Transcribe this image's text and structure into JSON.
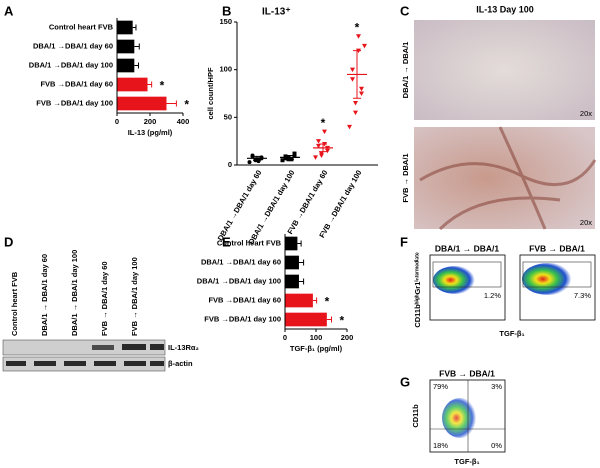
{
  "chart_data": [
    {
      "type": "hbar",
      "panel_label": "A",
      "categories": [
        "Control heart FVB",
        "DBA/1 →DBA/1 day 60",
        "DBA/1 →DBA/1 day 100",
        "FVB →DBA/1 day 60",
        "FVB →DBA/1 day 100"
      ],
      "values": [
        95,
        105,
        105,
        185,
        300
      ],
      "errors": [
        20,
        30,
        25,
        25,
        60
      ],
      "colors": [
        "#000000",
        "#000000",
        "#000000",
        "#e8141c",
        "#e8141c"
      ],
      "markers": [
        null,
        null,
        null,
        "*",
        "*"
      ],
      "xlim": [
        0,
        400
      ],
      "xticks": [
        0,
        200,
        400
      ],
      "xlabel": "IL-13 (pg/ml)"
    },
    {
      "type": "dot",
      "panel_label": "B",
      "title": "IL-13⁺",
      "ylabel": "cell count/HPF",
      "categories": [
        "DBA/1 →DBA/1 day 60",
        "DBA/1 →DBA/1 day 100",
        "FVB →DBA/1 day 60",
        "FVB →DBA/1 day 100"
      ],
      "points": [
        [
          3,
          5,
          6,
          7,
          8,
          9,
          10,
          4,
          6
        ],
        [
          5,
          6,
          8,
          10,
          12,
          7,
          9,
          6
        ],
        [
          8,
          10,
          12,
          15,
          18,
          20,
          25,
          35,
          22
        ],
        [
          40,
          55,
          65,
          75,
          80,
          90,
          100,
          120,
          135,
          125
        ]
      ],
      "means": [
        7,
        8,
        18,
        95
      ],
      "errors": [
        2,
        2,
        4,
        25
      ],
      "colors": [
        "#000000",
        "#000000",
        "#e8141c",
        "#e8141c"
      ],
      "shapes": [
        "circle",
        "square",
        "triangle-down",
        "triangle-down"
      ],
      "markers": [
        null,
        null,
        "*",
        "*"
      ],
      "ylim": [
        0,
        150
      ],
      "yticks": [
        0,
        50,
        100,
        150
      ]
    },
    {
      "type": "hbar",
      "panel_label": "E",
      "categories": [
        "Control heart FVB",
        "DBA/1 →DBA/1 day 60",
        "DBA/1 →DBA/1 day 100",
        "FVB →DBA/1 day 60",
        "FVB →DBA/1 day 100"
      ],
      "values": [
        40,
        45,
        45,
        90,
        135
      ],
      "errors": [
        12,
        15,
        15,
        12,
        15
      ],
      "colors": [
        "#000000",
        "#000000",
        "#000000",
        "#e8141c",
        "#e8141c"
      ],
      "markers": [
        null,
        null,
        null,
        "*",
        "*"
      ],
      "xlim": [
        0,
        200
      ],
      "xticks": [
        0,
        100,
        200
      ],
      "xlabel": "TGF-β₁ (pg/ml)"
    }
  ],
  "panel_c": {
    "label": "C",
    "title": "IL-13 Day 100",
    "rows": [
      "DBA/1 → DBA/1",
      "FVB → DBA/1"
    ],
    "magnification": [
      "20x",
      "20x"
    ]
  },
  "panel_d": {
    "label": "D",
    "lanes": [
      "Control heart FVB",
      "DBA/1 → DBA/1 day 60",
      "DBA/1 → DBA/1 day 100",
      "FVB → DBA/1 day 60",
      "FVB → DBA/1 day 100"
    ],
    "bands": [
      "IL-13Rα₂",
      "β-actin"
    ]
  },
  "panel_f": {
    "label": "F",
    "plots": [
      {
        "title": "DBA/1 → DBA/1",
        "gate": "1.2%"
      },
      {
        "title": "FVB → DBA/1",
        "gate": "7.3%"
      }
    ],
    "ylabel": "CD11bʰⁱᵍʰGr1ⁱⁿᵗᵉʳᵐᵉᵈⁱᵃᵗᵉ",
    "xlabel": "TGF-β₁"
  },
  "panel_g": {
    "label": "G",
    "title": "FVB → DBA/1",
    "quadrants": [
      "79%",
      "3%",
      "18%",
      "0%"
    ],
    "ylabel": "CD11b",
    "xlabel": "TGF-β₁"
  }
}
